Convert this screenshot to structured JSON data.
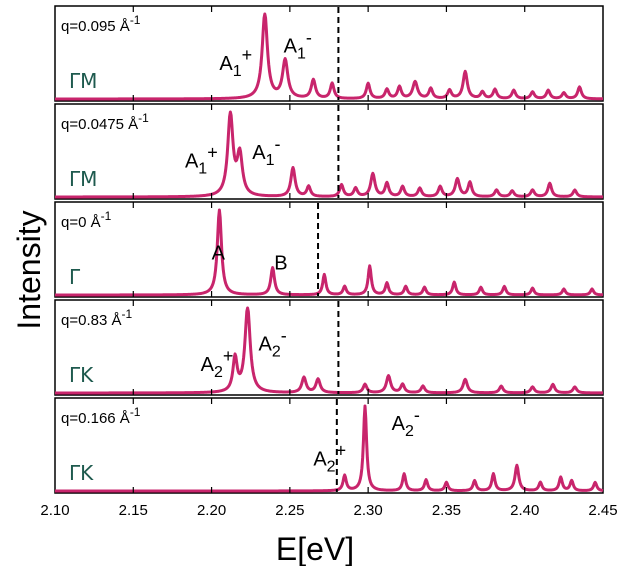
{
  "chart_data": {
    "type": "line",
    "xlabel": "E[eV]",
    "ylabel": "Intensity",
    "xlim": [
      2.1,
      2.45
    ],
    "xticks": [
      "2.10",
      "2.15",
      "2.20",
      "2.25",
      "2.30",
      "2.35",
      "2.40",
      "2.45"
    ],
    "line_color": "#c8256c",
    "label_color": "#1e5a4e",
    "panels": [
      {
        "q_label": "q=0.095 Å",
        "q_exp": "-1",
        "direction": "ΓM",
        "dashed_x": 2.281,
        "annotations": [
          {
            "base": "A",
            "sub": "1",
            "sup": "+",
            "x": 2.205,
            "y": 0.34
          },
          {
            "base": "A",
            "sub": "1",
            "sup": "-",
            "x": 2.246,
            "y": 0.55
          }
        ],
        "peaks": [
          [
            2.234,
            1.0,
            0.002
          ],
          [
            2.247,
            0.45,
            0.002
          ],
          [
            2.265,
            0.22,
            0.0016
          ],
          [
            2.277,
            0.18,
            0.0014
          ],
          [
            2.3,
            0.18,
            0.0014
          ],
          [
            2.312,
            0.11,
            0.0014
          ],
          [
            2.32,
            0.14,
            0.0014
          ],
          [
            2.33,
            0.2,
            0.0018
          ],
          [
            2.34,
            0.12,
            0.0014
          ],
          [
            2.352,
            0.1,
            0.0014
          ],
          [
            2.362,
            0.32,
            0.0016
          ],
          [
            2.373,
            0.08,
            0.0014
          ],
          [
            2.381,
            0.11,
            0.0014
          ],
          [
            2.393,
            0.1,
            0.0014
          ],
          [
            2.405,
            0.08,
            0.0014
          ],
          [
            2.415,
            0.1,
            0.0014
          ],
          [
            2.425,
            0.07,
            0.0014
          ],
          [
            2.435,
            0.14,
            0.0014
          ]
        ]
      },
      {
        "q_label": "q=0.0475 Å",
        "q_exp": "-1",
        "direction": "ΓM",
        "dashed_x": 2.281,
        "annotations": [
          {
            "base": "A",
            "sub": "1",
            "sup": "+",
            "x": 2.183,
            "y": 0.35
          },
          {
            "base": "A",
            "sub": "1",
            "sup": "-",
            "x": 2.226,
            "y": 0.45
          }
        ],
        "peaks": [
          [
            2.212,
            0.96,
            0.002
          ],
          [
            2.218,
            0.48,
            0.002
          ],
          [
            2.252,
            0.34,
            0.0016
          ],
          [
            2.262,
            0.12,
            0.0014
          ],
          [
            2.283,
            0.14,
            0.0014
          ],
          [
            2.292,
            0.1,
            0.0014
          ],
          [
            2.303,
            0.27,
            0.0016
          ],
          [
            2.312,
            0.16,
            0.0014
          ],
          [
            2.322,
            0.12,
            0.0014
          ],
          [
            2.333,
            0.1,
            0.0014
          ],
          [
            2.346,
            0.12,
            0.0014
          ],
          [
            2.357,
            0.21,
            0.0016
          ],
          [
            2.365,
            0.17,
            0.0014
          ],
          [
            2.382,
            0.08,
            0.0014
          ],
          [
            2.392,
            0.07,
            0.0014
          ],
          [
            2.405,
            0.08,
            0.0014
          ],
          [
            2.416,
            0.16,
            0.0014
          ],
          [
            2.432,
            0.08,
            0.0014
          ]
        ]
      },
      {
        "q_label": "q=0 Å",
        "q_exp": "-1",
        "direction": "Γ",
        "dashed_x": 2.268,
        "annotations": [
          {
            "base": "A",
            "sub": "",
            "sup": "",
            "x": 2.2,
            "y": 0.42
          },
          {
            "base": "B",
            "sub": "",
            "sup": "",
            "x": 2.24,
            "y": 0.3
          }
        ],
        "peaks": [
          [
            2.205,
            1.0,
            0.0016
          ],
          [
            2.239,
            0.32,
            0.0014
          ],
          [
            2.272,
            0.24,
            0.0012
          ],
          [
            2.285,
            0.1,
            0.0012
          ],
          [
            2.301,
            0.34,
            0.0012
          ],
          [
            2.312,
            0.14,
            0.0012
          ],
          [
            2.324,
            0.1,
            0.0012
          ],
          [
            2.336,
            0.09,
            0.0012
          ],
          [
            2.355,
            0.15,
            0.0012
          ],
          [
            2.372,
            0.09,
            0.0012
          ],
          [
            2.387,
            0.1,
            0.0012
          ],
          [
            2.405,
            0.08,
            0.0012
          ],
          [
            2.425,
            0.07,
            0.0012
          ],
          [
            2.443,
            0.07,
            0.0012
          ]
        ]
      },
      {
        "q_label": "q=0.83 Å",
        "q_exp": "-1",
        "direction": "ΓK",
        "dashed_x": 2.281,
        "annotations": [
          {
            "base": "A",
            "sub": "2",
            "sup": "+",
            "x": 2.193,
            "y": 0.26
          },
          {
            "base": "A",
            "sub": "2",
            "sup": "-",
            "x": 2.23,
            "y": 0.5
          }
        ],
        "peaks": [
          [
            2.215,
            0.4,
            0.0016
          ],
          [
            2.223,
            1.0,
            0.002
          ],
          [
            2.259,
            0.18,
            0.0016
          ],
          [
            2.268,
            0.16,
            0.0016
          ],
          [
            2.298,
            0.1,
            0.0014
          ],
          [
            2.313,
            0.2,
            0.0016
          ],
          [
            2.322,
            0.1,
            0.0014
          ],
          [
            2.335,
            0.08,
            0.0014
          ],
          [
            2.362,
            0.16,
            0.0016
          ],
          [
            2.385,
            0.08,
            0.0014
          ],
          [
            2.405,
            0.07,
            0.0014
          ],
          [
            2.418,
            0.1,
            0.0014
          ],
          [
            2.432,
            0.07,
            0.0014
          ]
        ]
      },
      {
        "q_label": "q=0.166 Å",
        "q_exp": "-1",
        "direction": "ΓK",
        "dashed_x": 2.28,
        "annotations": [
          {
            "base": "A",
            "sub": "2",
            "sup": "+",
            "x": 2.265,
            "y": 0.3
          },
          {
            "base": "A",
            "sub": "2",
            "sup": "-",
            "x": 2.315,
            "y": 0.72
          }
        ],
        "peaks": [
          [
            2.285,
            0.18,
            0.0012
          ],
          [
            2.298,
            1.0,
            0.0012
          ],
          [
            2.323,
            0.2,
            0.0012
          ],
          [
            2.337,
            0.13,
            0.0012
          ],
          [
            2.35,
            0.1,
            0.0012
          ],
          [
            2.368,
            0.12,
            0.0012
          ],
          [
            2.38,
            0.2,
            0.0012
          ],
          [
            2.395,
            0.3,
            0.0014
          ],
          [
            2.41,
            0.1,
            0.0012
          ],
          [
            2.423,
            0.16,
            0.0012
          ],
          [
            2.43,
            0.12,
            0.0012
          ],
          [
            2.445,
            0.1,
            0.0012
          ]
        ]
      }
    ]
  }
}
